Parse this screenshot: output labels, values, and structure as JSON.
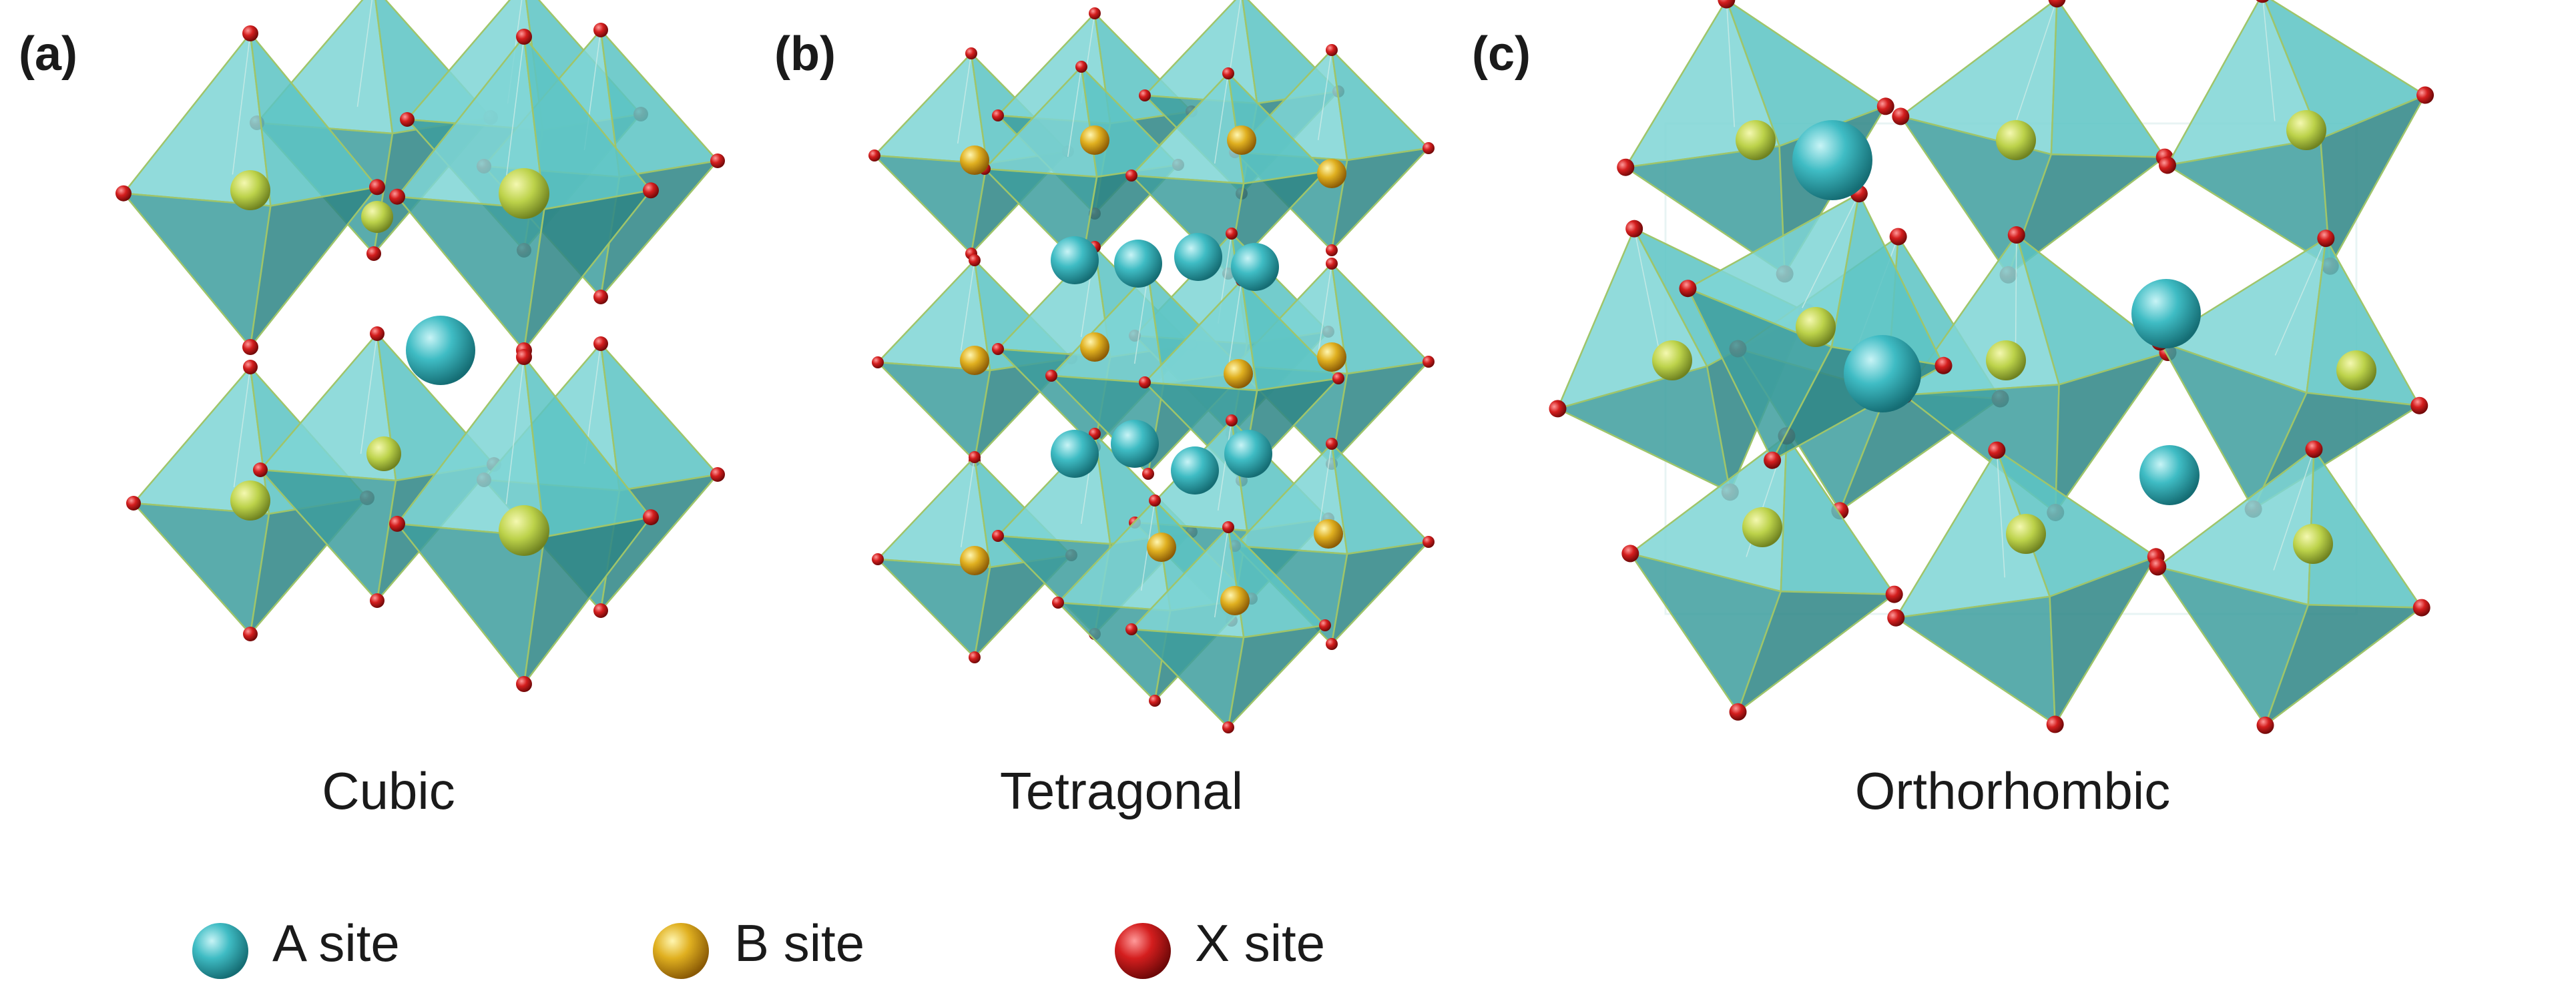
{
  "panels": [
    {
      "label": "(a)",
      "caption": "Cubic"
    },
    {
      "label": "(b)",
      "caption": "Tetragonal"
    },
    {
      "label": "(c)",
      "caption": "Orthorhombic"
    }
  ],
  "legend": [
    {
      "label": "A site",
      "color": "#3fbcc4"
    },
    {
      "label": "B site",
      "color": "#e0b020"
    },
    {
      "label": "X site",
      "color": "#d41e1e"
    }
  ],
  "colors": {
    "octahedron_face": "#5cc4c4",
    "octahedron_edge": "#9fc56a",
    "b_site_in_structure": "#bcd24a"
  }
}
